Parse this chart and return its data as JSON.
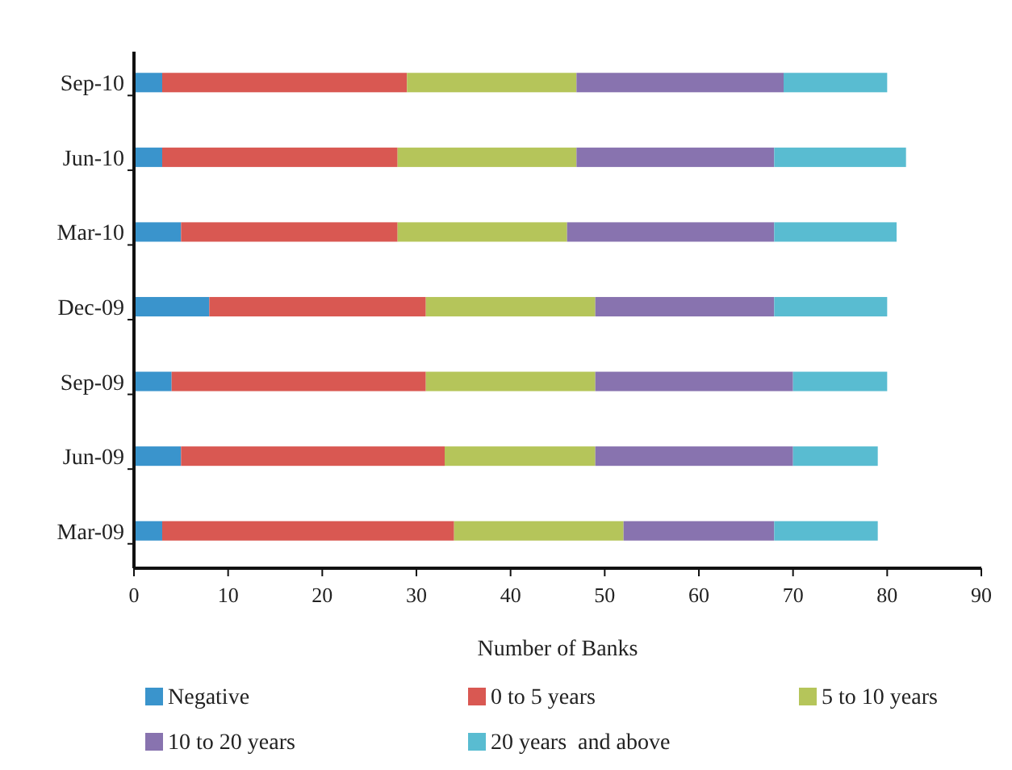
{
  "chart_data": {
    "type": "bar",
    "orientation": "horizontal",
    "stacked": true,
    "xlabel": "Number of Banks",
    "categories": [
      "Sep-10",
      "Jun-10",
      "Mar-10",
      "Dec-09",
      "Sep-09",
      "Jun-09",
      "Mar-09"
    ],
    "series": [
      {
        "name": "Negative",
        "color": "#3a94cc",
        "values": [
          3,
          3,
          5,
          8,
          4,
          5,
          3
        ]
      },
      {
        "name": "0 to 5 years",
        "color": "#d95852",
        "values": [
          26,
          25,
          23,
          23,
          27,
          28,
          31
        ]
      },
      {
        "name": "5 to 10 years",
        "color": "#b5c55a",
        "values": [
          18,
          19,
          18,
          18,
          18,
          16,
          18
        ]
      },
      {
        "name": "10 to 20 years",
        "color": "#8873af",
        "values": [
          22,
          21,
          22,
          19,
          21,
          21,
          16
        ]
      },
      {
        "name": "20 years  and above",
        "color": "#59bcd1",
        "values": [
          11,
          14,
          13,
          12,
          10,
          9,
          11
        ]
      }
    ],
    "xlim": [
      0,
      90
    ],
    "xticks": [
      0,
      10,
      20,
      30,
      40,
      50,
      60,
      70,
      80,
      90
    ],
    "grid": false,
    "legend": "bottom"
  }
}
